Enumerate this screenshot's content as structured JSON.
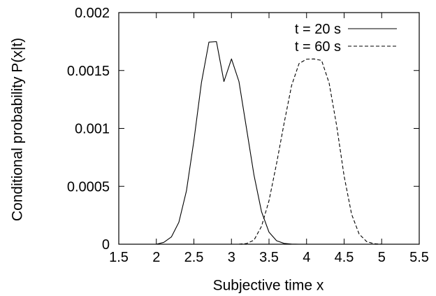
{
  "chart_data": {
    "type": "line",
    "xlabel": "Subjective time x",
    "ylabel": "Conditional probability P(x|t)",
    "xlim": [
      1.5,
      5.5
    ],
    "ylim": [
      0,
      0.002
    ],
    "x_ticks": [
      "1.5",
      "2",
      "2.5",
      "3",
      "3.5",
      "4",
      "4.5",
      "5",
      "5.5"
    ],
    "y_ticks": [
      "0",
      "0.0005",
      "0.001",
      "0.0015",
      "0.002"
    ],
    "grid": false,
    "legend_position": "top-right",
    "series": [
      {
        "name": "t = 20 s",
        "style": "solid",
        "x": [
          2.0,
          2.1,
          2.2,
          2.3,
          2.4,
          2.5,
          2.6,
          2.7,
          2.8,
          2.9,
          3.0,
          3.1,
          3.2,
          3.3,
          3.4,
          3.5,
          3.6,
          3.7,
          3.8,
          3.9,
          4.0
        ],
        "y": [
          0.0,
          1.66e-05,
          6.26e-05,
          0.0001895,
          0.0004598,
          0.000895,
          0.001396,
          0.001745,
          0.001749,
          0.001405,
          0.0016,
          0.001405,
          0.001,
          0.000597,
          0.000281,
          0.000104,
          3.05e-05,
          7e-06,
          1.3e-06,
          2e-07,
          0.0
        ]
      },
      {
        "name": "t = 60 s",
        "style": "dashed",
        "x": [
          3.1,
          3.2,
          3.3,
          3.4,
          3.5,
          3.6,
          3.7,
          3.8,
          3.9,
          4.0,
          4.1,
          4.2,
          4.3,
          4.4,
          4.5,
          4.6,
          4.7,
          4.8,
          4.9,
          5.0
        ],
        "y": [
          7e-07,
          5.9e-06,
          3.52e-05,
          0.0001549,
          0.000376,
          0.000696,
          0.001041,
          0.00137,
          0.00156,
          0.001598,
          0.0016,
          0.001587,
          0.001393,
          0.001024,
          0.000588,
          0.000259,
          8.76e-05,
          2.22e-05,
          4.2e-06,
          6e-07
        ]
      }
    ]
  }
}
